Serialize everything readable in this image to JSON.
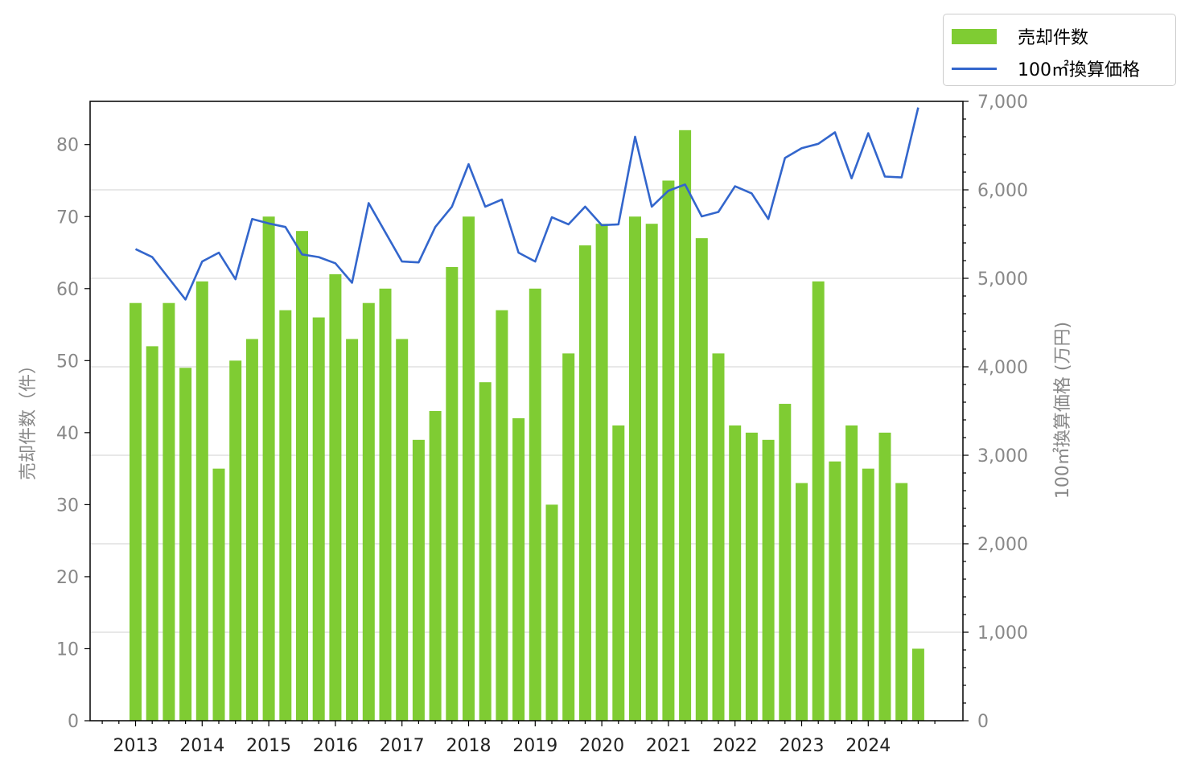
{
  "chart_data": {
    "type": "bar+line",
    "x_tick_labels": [
      "2013",
      "2014",
      "2015",
      "2016",
      "2017",
      "2018",
      "2019",
      "2020",
      "2021",
      "2022",
      "2023",
      "2024"
    ],
    "series": [
      {
        "name": "売却件数",
        "type": "bar",
        "axis": "left",
        "color": "#7fcc33",
        "values": [
          58,
          52,
          58,
          49,
          61,
          35,
          50,
          53,
          70,
          57,
          68,
          56,
          62,
          53,
          58,
          60,
          53,
          39,
          43,
          63,
          70,
          47,
          57,
          42,
          60,
          30,
          51,
          66,
          69,
          41,
          70,
          69,
          75,
          82,
          67,
          51,
          41,
          40,
          39,
          44,
          33,
          61,
          36,
          41,
          35,
          40,
          33,
          10
        ]
      },
      {
        "name": "100㎡換算価格",
        "type": "line",
        "axis": "right",
        "color": "#3366cc",
        "values": [
          5330,
          5240,
          5000,
          4760,
          5190,
          5290,
          4990,
          5670,
          5620,
          5580,
          5270,
          5240,
          5170,
          4950,
          5850,
          5520,
          5190,
          5180,
          5580,
          5810,
          6290,
          5810,
          5890,
          5290,
          5190,
          5690,
          5610,
          5810,
          5600,
          5610,
          6600,
          5810,
          5990,
          6060,
          5700,
          5750,
          6040,
          5960,
          5670,
          6360,
          6470,
          6520,
          6650,
          6130,
          6640,
          6150,
          6140,
          6930
        ]
      }
    ],
    "y_left": {
      "label": "売却件数（件）",
      "ylim": [
        0,
        86
      ],
      "ticks": [
        "0",
        "10",
        "20",
        "30",
        "40",
        "50",
        "60",
        "70",
        "80"
      ]
    },
    "y_right": {
      "label": "100㎡換算価格 (万円)",
      "ylim": [
        0,
        7000
      ],
      "ticks": [
        "0",
        "1,000",
        "2,000",
        "3,000",
        "4,000",
        "5,000",
        "6,000",
        "7,000"
      ]
    },
    "grid": "horizontal",
    "legend_position": "top-right"
  }
}
